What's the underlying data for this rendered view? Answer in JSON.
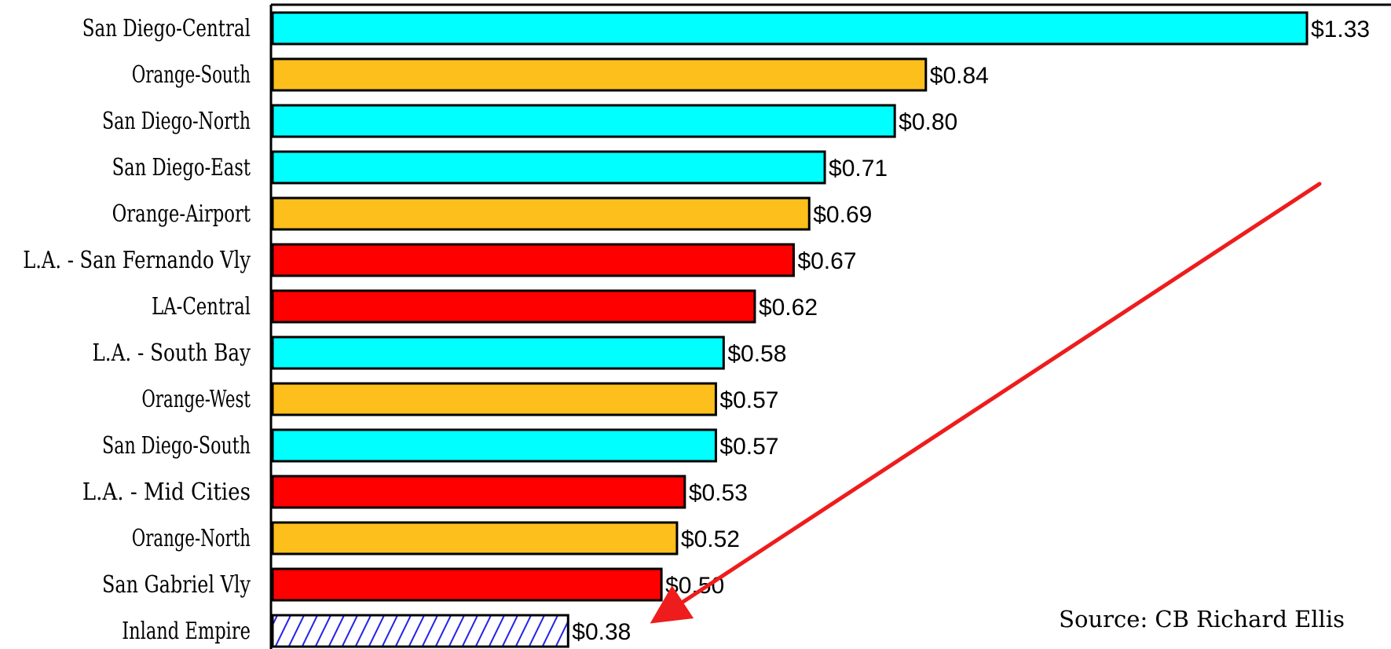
{
  "chart_data": {
    "type": "bar",
    "orientation": "horizontal",
    "title": "",
    "xlabel": "",
    "ylabel": "",
    "value_prefix": "$",
    "categories": [
      "San Diego-Central",
      "Orange-South",
      "San Diego-North",
      "San Diego-East",
      "Orange-Airport",
      "L.A. - San Fernando Vly",
      "LA-Central",
      "L.A. - South Bay",
      "Orange-West",
      "San Diego-South",
      "L.A. - Mid Cities",
      "Orange-North",
      "San Gabriel Vly",
      "Inland Empire"
    ],
    "values": [
      1.33,
      0.84,
      0.8,
      0.71,
      0.69,
      0.67,
      0.62,
      0.58,
      0.57,
      0.57,
      0.53,
      0.52,
      0.5,
      0.38
    ],
    "value_labels": [
      "$1.33",
      "$0.84",
      "$0.80",
      "$0.71",
      "$0.69",
      "$0.67",
      "$0.62",
      "$0.58",
      "$0.57",
      "$0.57",
      "$0.53",
      "$0.52",
      "$0.50",
      "$0.38"
    ],
    "bar_colors": [
      "#00ffff",
      "#fdbf1b",
      "#00ffff",
      "#00ffff",
      "#fdbf1b",
      "#ff0000",
      "#ff0000",
      "#00ffff",
      "#fdbf1b",
      "#00ffff",
      "#ff0000",
      "#fdbf1b",
      "#ff0000",
      "hatched-blue"
    ],
    "xlim": [
      0,
      1.33
    ],
    "grid": false,
    "legend": "none",
    "annotations": [
      {
        "type": "arrow",
        "color": "#ee1c1c",
        "points_to": "Inland Empire"
      }
    ],
    "source": "Source:  CB Richard Ellis"
  },
  "colors": {
    "cyan": "#00ffff",
    "orange": "#fdbf1b",
    "red": "#ff0000",
    "hatch_blue": "#1e1ee8",
    "arrow": "#ee1c1c"
  }
}
